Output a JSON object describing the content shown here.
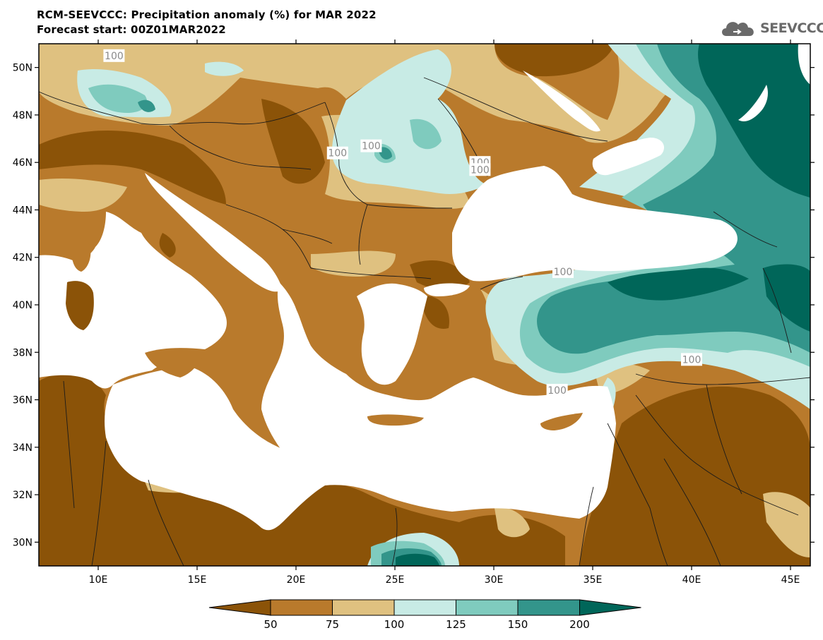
{
  "header": {
    "title_line1": "RCM-SEEVCCC: Precipitation anomaly (%) for MAR 2022",
    "title_line2": "Forecast start: 00Z01MAR2022"
  },
  "logo": {
    "text": "SEEVCCC",
    "icon": "cloud-icon"
  },
  "map": {
    "lon_range": [
      7,
      46
    ],
    "lat_range": [
      29,
      51
    ],
    "lat_ticks": [
      {
        "value": 50,
        "label": "50N"
      },
      {
        "value": 48,
        "label": "48N"
      },
      {
        "value": 46,
        "label": "46N"
      },
      {
        "value": 44,
        "label": "44N"
      },
      {
        "value": 42,
        "label": "42N"
      },
      {
        "value": 40,
        "label": "40N"
      },
      {
        "value": 38,
        "label": "38N"
      },
      {
        "value": 36,
        "label": "36N"
      },
      {
        "value": 34,
        "label": "34N"
      },
      {
        "value": 32,
        "label": "32N"
      },
      {
        "value": 30,
        "label": "30N"
      }
    ],
    "lon_ticks": [
      {
        "value": 10,
        "label": "10E"
      },
      {
        "value": 15,
        "label": "15E"
      },
      {
        "value": 20,
        "label": "20E"
      },
      {
        "value": 25,
        "label": "25E"
      },
      {
        "value": 30,
        "label": "30E"
      },
      {
        "value": 35,
        "label": "35E"
      },
      {
        "value": 40,
        "label": "40E"
      },
      {
        "value": 45,
        "label": "45E"
      }
    ],
    "contour_labels": [
      {
        "text": "100",
        "lon": 10.8,
        "lat": 50.5
      },
      {
        "text": "100",
        "lon": 22.1,
        "lat": 46.4
      },
      {
        "text": "100",
        "lon": 23.8,
        "lat": 46.7
      },
      {
        "text": "100",
        "lon": 29.3,
        "lat": 46.0
      },
      {
        "text": "100",
        "lon": 29.3,
        "lat": 45.7
      },
      {
        "text": "100",
        "lon": 33.5,
        "lat": 41.4
      },
      {
        "text": "100",
        "lon": 40.0,
        "lat": 37.7
      },
      {
        "text": "100",
        "lon": 33.2,
        "lat": 36.4
      }
    ]
  },
  "colorbar": {
    "levels": [
      "50",
      "75",
      "100",
      "125",
      "150",
      "200"
    ],
    "colors": [
      "#8b5308",
      "#b97a2c",
      "#dfc180",
      "#c8ebe5",
      "#7fcbbe",
      "#33958b",
      "#006659"
    ]
  },
  "colors": {
    "sea": "#ffffff",
    "very_dry": "#8b5308",
    "dry": "#b97a2c",
    "slightly_dry": "#dfc180",
    "slightly_wet": "#c8ebe5",
    "wet": "#7fcbbe",
    "very_wet": "#33958b",
    "extremely_wet": "#006659"
  }
}
